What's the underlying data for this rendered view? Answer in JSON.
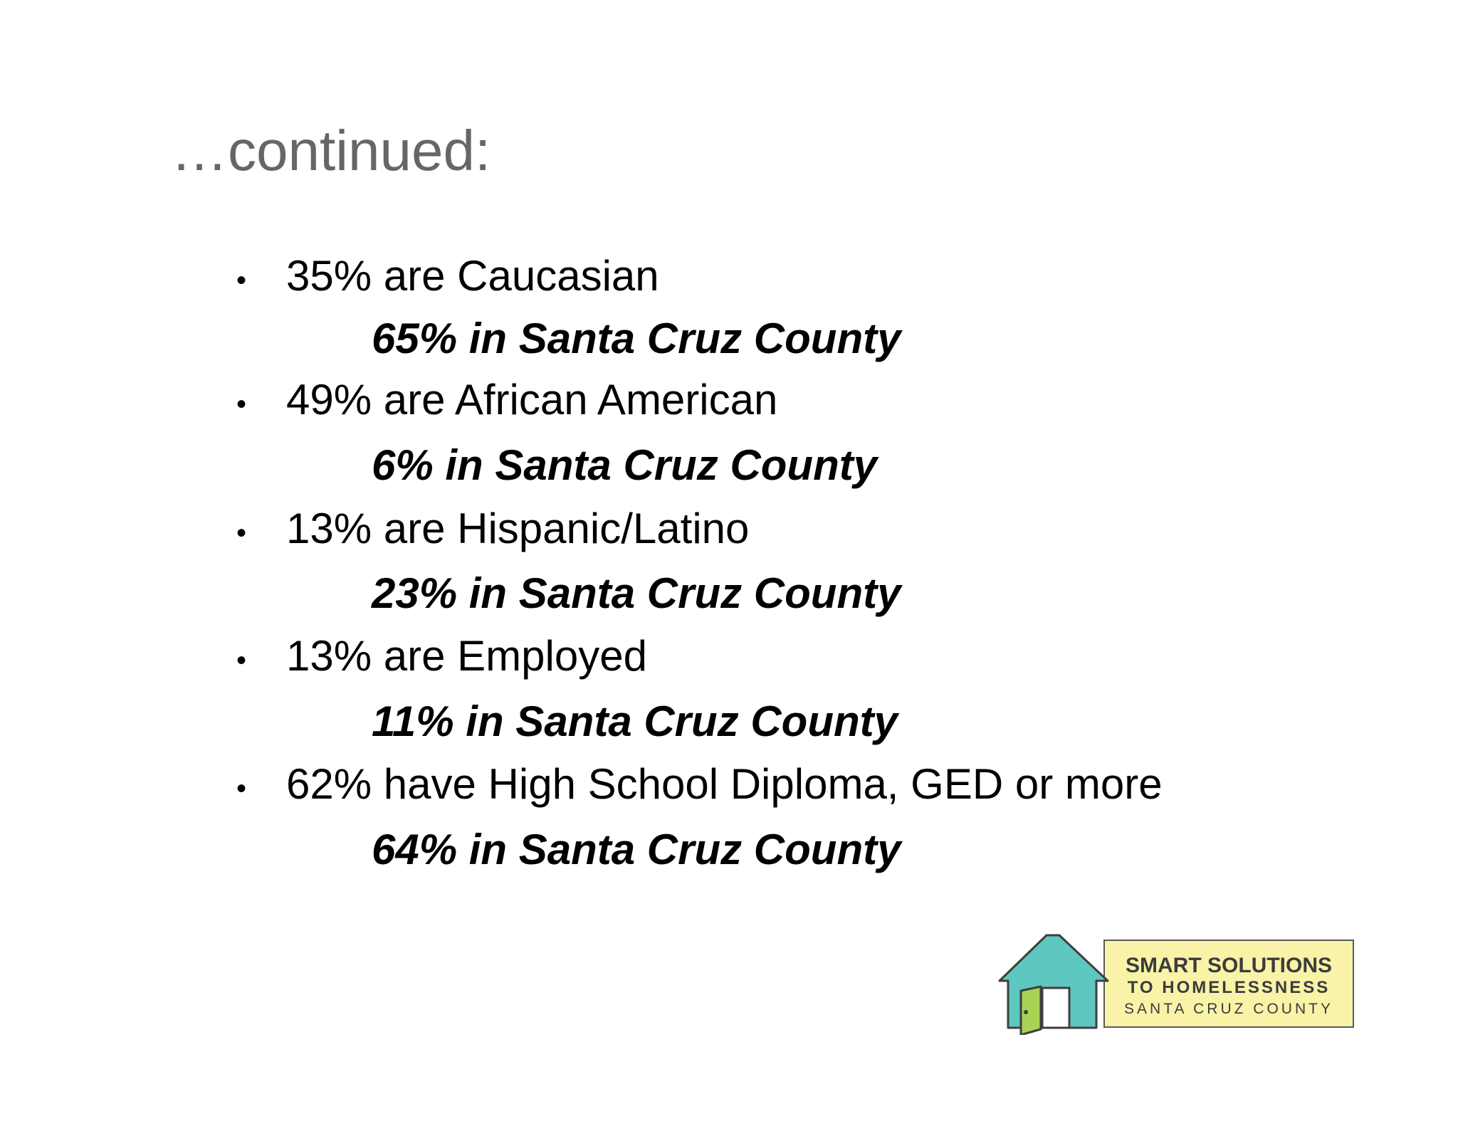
{
  "slide": {
    "title": "…continued:",
    "bullets": [
      {
        "text": "35% are Caucasian",
        "county": "65% in Santa Cruz County"
      },
      {
        "text": "49% are African American",
        "county": "6% in Santa Cruz County"
      },
      {
        "text": "13% are Hispanic/Latino",
        "county": "23% in Santa Cruz County"
      },
      {
        "text": "13% are Employed",
        "county": "11% in Santa Cruz County"
      },
      {
        "text": "62% have High School Diploma, GED or more",
        "county": "64% in Santa Cruz County"
      }
    ],
    "bullet_symbol": "•"
  },
  "logo": {
    "line1": "SMART SOLUTIONS",
    "line2": "TO HOMELESSNESS",
    "line3": "SANTA CRUZ COUNTY",
    "colors": {
      "house": "#5ec7c0",
      "door": "#a7d453",
      "box_fill": "#f8f3a7",
      "text": "#3c3c3c"
    }
  }
}
